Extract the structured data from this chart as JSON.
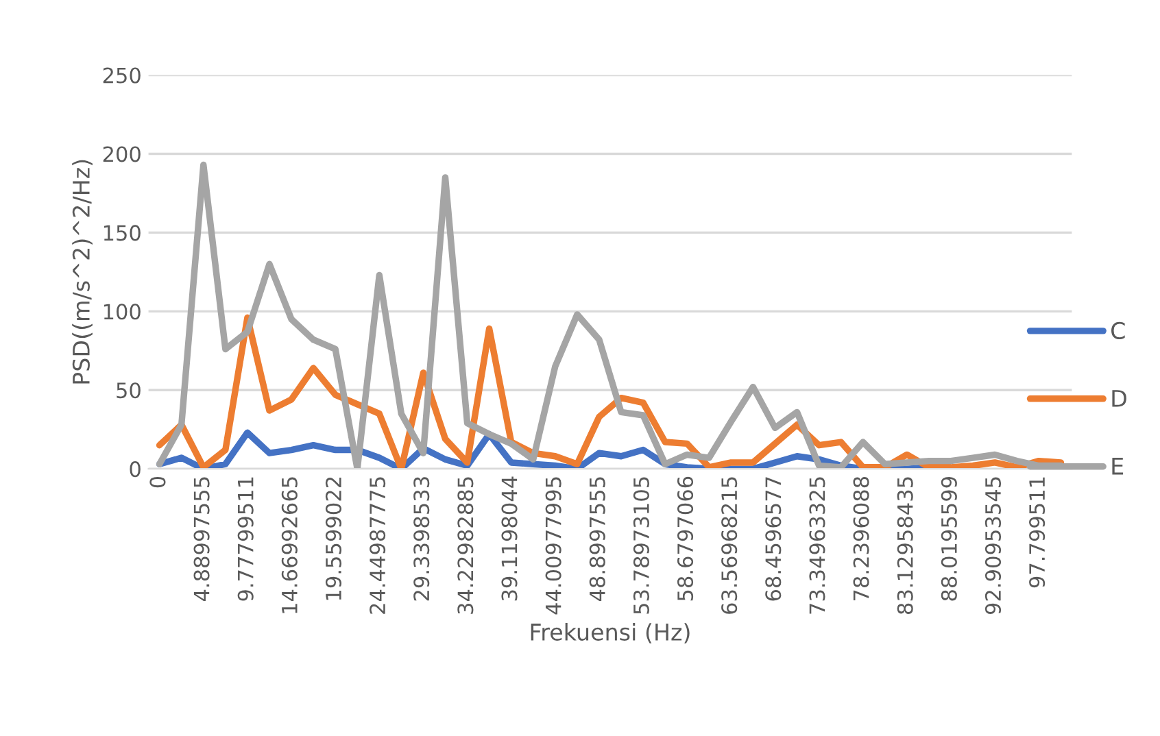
{
  "chart_data": {
    "type": "line",
    "xlabel": "Frekuensi (Hz)",
    "ylabel": "PSD((m/s^2)^2/Hz)",
    "categories": [
      "0",
      null,
      "4.88997555",
      null,
      "9.77799511",
      null,
      "14.66992665",
      null,
      "19.5599022",
      null,
      "24.44987775",
      null,
      "29.3398533",
      null,
      "34.22982885",
      null,
      "39.1198044",
      null,
      "44.00977995",
      null,
      "48.8997555",
      null,
      "53.78973105",
      null,
      "58.6797066",
      null,
      "63.56968215",
      null,
      "68.4596577",
      null,
      "73.34963325",
      null,
      "78.2396088",
      null,
      "83.12958435",
      null,
      "88.0195599",
      null,
      "92.90953545",
      null,
      "97.799511",
      null
    ],
    "series": [
      {
        "name": "C",
        "color": "#4472c4",
        "values": [
          3,
          7,
          0,
          3,
          23,
          10,
          12,
          15,
          12,
          12,
          7,
          0,
          13,
          6,
          2,
          22,
          4,
          3,
          2,
          0,
          10,
          8,
          12,
          3,
          1,
          0,
          0,
          0,
          4,
          8,
          6,
          2,
          0,
          0,
          0,
          1,
          null,
          null,
          null,
          null,
          null,
          null
        ]
      },
      {
        "name": "D",
        "color": "#ed7d31",
        "values": [
          15,
          28,
          1,
          12,
          96,
          37,
          44,
          64,
          47,
          41,
          35,
          0,
          61,
          19,
          4,
          89,
          17,
          10,
          8,
          3,
          33,
          45,
          42,
          17,
          16,
          1,
          4,
          4,
          16,
          28,
          15,
          17,
          1,
          1,
          9,
          1,
          1,
          2,
          4,
          1,
          5,
          4
        ]
      },
      {
        "name": "E",
        "color": "#a5a5a5",
        "values": [
          3,
          28,
          193,
          76,
          87,
          130,
          95,
          82,
          76,
          0,
          123,
          35,
          10,
          185,
          29,
          22,
          16,
          6,
          65,
          98,
          82,
          36,
          34,
          3,
          9,
          7,
          30,
          52,
          26,
          36,
          2,
          1,
          17,
          3,
          4,
          5,
          5,
          7,
          9,
          5,
          2,
          2
        ]
      }
    ],
    "ylim": [
      0,
      250
    ],
    "yticks": [
      0,
      50,
      100,
      150,
      200,
      250
    ],
    "grid": "y",
    "legend": "right",
    "marker": "none",
    "line_style": "solid"
  }
}
